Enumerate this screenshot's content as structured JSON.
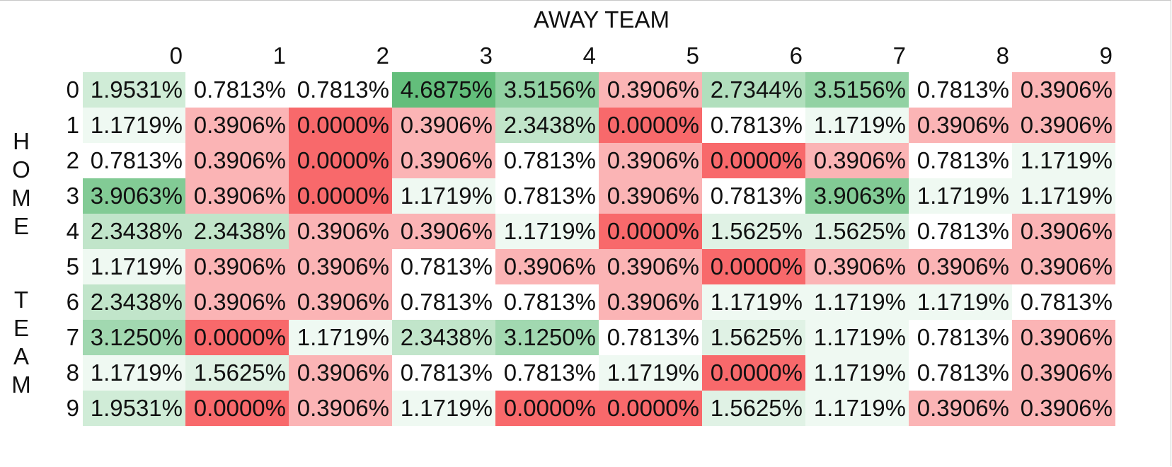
{
  "x_axis_title": "AWAY TEAM",
  "y_axis_title": "HOME TEAM",
  "y_axis_letters": [
    "H",
    "O",
    "M",
    "E",
    "T",
    "E",
    "A",
    "M"
  ],
  "colors": {
    "low": "#f8696b",
    "mid": "#ffffff",
    "high": "#63be7b"
  },
  "chart_data": {
    "type": "heatmap",
    "xlabel": "AWAY TEAM",
    "ylabel": "HOME TEAM",
    "x_categories": [
      "0",
      "1",
      "2",
      "3",
      "4",
      "5",
      "6",
      "7",
      "8",
      "9"
    ],
    "y_categories": [
      "0",
      "1",
      "2",
      "3",
      "4",
      "5",
      "6",
      "7",
      "8",
      "9"
    ],
    "cells": [
      [
        "1.9531%",
        "0.7813%",
        "0.7813%",
        "4.6875%",
        "3.5156%",
        "0.3906%",
        "2.7344%",
        "3.5156%",
        "0.7813%",
        "0.3906%"
      ],
      [
        "1.1719%",
        "0.3906%",
        "0.0000%",
        "0.3906%",
        "2.3438%",
        "0.0000%",
        "0.7813%",
        "1.1719%",
        "0.3906%",
        "0.3906%"
      ],
      [
        "0.7813%",
        "0.3906%",
        "0.0000%",
        "0.3906%",
        "0.7813%",
        "0.3906%",
        "0.0000%",
        "0.3906%",
        "0.7813%",
        "1.1719%"
      ],
      [
        "3.9063%",
        "0.3906%",
        "0.0000%",
        "1.1719%",
        "0.7813%",
        "0.3906%",
        "0.7813%",
        "3.9063%",
        "1.1719%",
        "1.1719%"
      ],
      [
        "2.3438%",
        "2.3438%",
        "0.3906%",
        "0.3906%",
        "1.1719%",
        "0.0000%",
        "1.5625%",
        "1.5625%",
        "0.7813%",
        "0.3906%"
      ],
      [
        "1.1719%",
        "0.3906%",
        "0.3906%",
        "0.7813%",
        "0.3906%",
        "0.3906%",
        "0.0000%",
        "0.3906%",
        "0.3906%",
        "0.3906%"
      ],
      [
        "2.3438%",
        "0.3906%",
        "0.3906%",
        "0.7813%",
        "0.7813%",
        "0.3906%",
        "1.1719%",
        "1.1719%",
        "1.1719%",
        "0.7813%"
      ],
      [
        "3.1250%",
        "0.0000%",
        "1.1719%",
        "2.3438%",
        "3.1250%",
        "0.7813%",
        "1.5625%",
        "1.1719%",
        "0.7813%",
        "0.3906%"
      ],
      [
        "1.1719%",
        "1.5625%",
        "0.3906%",
        "0.7813%",
        "0.7813%",
        "1.1719%",
        "0.0000%",
        "1.1719%",
        "0.7813%",
        "0.3906%"
      ],
      [
        "1.9531%",
        "0.0000%",
        "0.3906%",
        "1.1719%",
        "0.0000%",
        "0.0000%",
        "1.5625%",
        "1.1719%",
        "0.3906%",
        "0.3906%"
      ]
    ]
  }
}
